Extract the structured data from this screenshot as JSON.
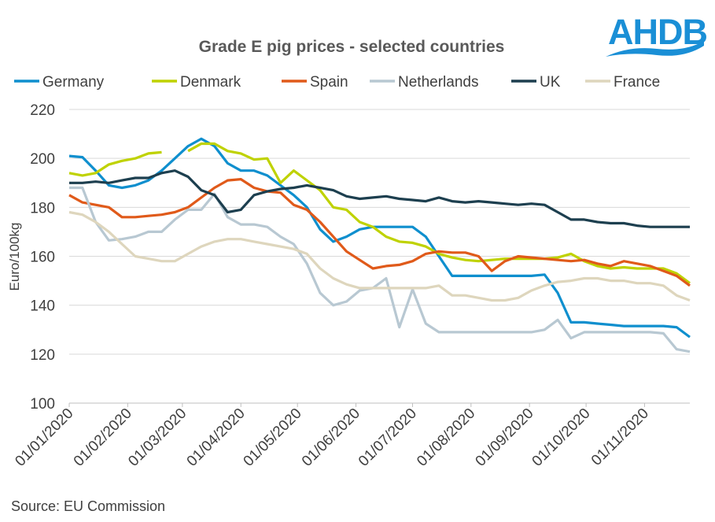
{
  "chart_data": {
    "type": "line",
    "title": "Grade E pig prices - selected countries",
    "ylabel": "Euro/100kg",
    "xlabel": "",
    "ylim": [
      100,
      220
    ],
    "yticks": [
      100,
      120,
      140,
      160,
      180,
      200,
      220
    ],
    "xtick_labels": [
      "01/01/2020",
      "01/02/2020",
      "01/03/2020",
      "01/04/2020",
      "01/05/2020",
      "01/06/2020",
      "01/07/2020",
      "01/08/2020",
      "01/09/2020",
      "01/10/2020",
      "01/11/2020"
    ],
    "x_frequency": "weekly, from 01/01/2020",
    "grid": "horizontal",
    "legend_position": "top",
    "series": [
      {
        "name": "Germany",
        "color": "#0f8fce",
        "values": [
          201,
          200.5,
          195,
          189,
          188,
          189,
          191,
          195,
          200,
          205,
          208,
          205,
          198,
          195,
          195,
          193,
          189,
          185,
          180,
          171,
          166,
          168,
          171,
          172,
          172,
          172,
          172,
          168,
          160,
          152,
          152,
          152,
          152,
          152,
          152,
          152,
          152.5,
          145,
          133,
          133,
          132.5,
          132,
          131.5,
          131.5,
          131.5,
          131.5,
          131,
          127
        ]
      },
      {
        "name": "Denmark",
        "color": "#bfd200",
        "values": [
          194,
          193,
          194,
          197.5,
          199,
          200,
          202,
          202.5,
          null,
          203,
          206,
          206,
          203,
          202,
          199.5,
          200,
          190,
          195,
          191,
          187,
          180,
          179,
          174,
          172,
          168,
          166,
          165.5,
          164,
          161,
          159.5,
          158.5,
          158,
          158.5,
          159,
          159,
          159,
          159,
          159.5,
          161,
          158,
          156,
          155,
          155.5,
          155,
          155,
          155,
          153,
          149
        ]
      },
      {
        "name": "Spain",
        "color": "#e05a1a",
        "values": [
          185,
          182,
          181,
          180,
          176,
          176,
          176.5,
          177,
          178,
          180,
          184,
          188,
          191,
          191.5,
          188,
          186.5,
          186,
          181,
          179,
          174,
          168,
          162,
          158.5,
          155,
          156,
          156.5,
          158,
          161,
          162,
          161.5,
          161.5,
          160,
          154,
          158,
          160,
          159.5,
          159,
          158.5,
          158,
          158.5,
          157,
          156,
          158,
          157,
          156,
          154,
          152,
          148
        ]
      },
      {
        "name": "Netherlands",
        "color": "#b8c8d2",
        "values": [
          188,
          188,
          174,
          166.5,
          167,
          168,
          170,
          170,
          175,
          179,
          179,
          185.5,
          176,
          173,
          173,
          172,
          168,
          165,
          157,
          145,
          140,
          141.5,
          146,
          147,
          151,
          131,
          146.5,
          132.5,
          129,
          129,
          129,
          129,
          129,
          129,
          129,
          129,
          130,
          134,
          126.5,
          129,
          129,
          129,
          129,
          129,
          129,
          128.5,
          122,
          121
        ]
      },
      {
        "name": "UK",
        "color": "#1d3f4f",
        "values": [
          190,
          190,
          190.5,
          190,
          191,
          192,
          192,
          194,
          195,
          192.5,
          187,
          185,
          178,
          179,
          185,
          186.5,
          187.5,
          188,
          189,
          188,
          187,
          184.5,
          183.5,
          184,
          184.5,
          183.5,
          183,
          182.5,
          184,
          182.5,
          182,
          182.5,
          182,
          181.5,
          181,
          181.5,
          181,
          178,
          175,
          175,
          174,
          173.5,
          173.5,
          172.5,
          172,
          172,
          172,
          172
        ]
      },
      {
        "name": "France",
        "color": "#ded6bd",
        "values": [
          178,
          177,
          174,
          170,
          165,
          160,
          159,
          158,
          158,
          161,
          164,
          166,
          167,
          167,
          166,
          165,
          164,
          163,
          161,
          155,
          151,
          148.5,
          147,
          147,
          147,
          147,
          147,
          147,
          148,
          144,
          144,
          143,
          142,
          142,
          143,
          146,
          148,
          149.5,
          150,
          151,
          151,
          150,
          150,
          149,
          149,
          148,
          144,
          142
        ]
      }
    ],
    "source": "Source: EU Commission"
  },
  "logo": {
    "text": "AHDB",
    "color": "#1a8fd6"
  }
}
